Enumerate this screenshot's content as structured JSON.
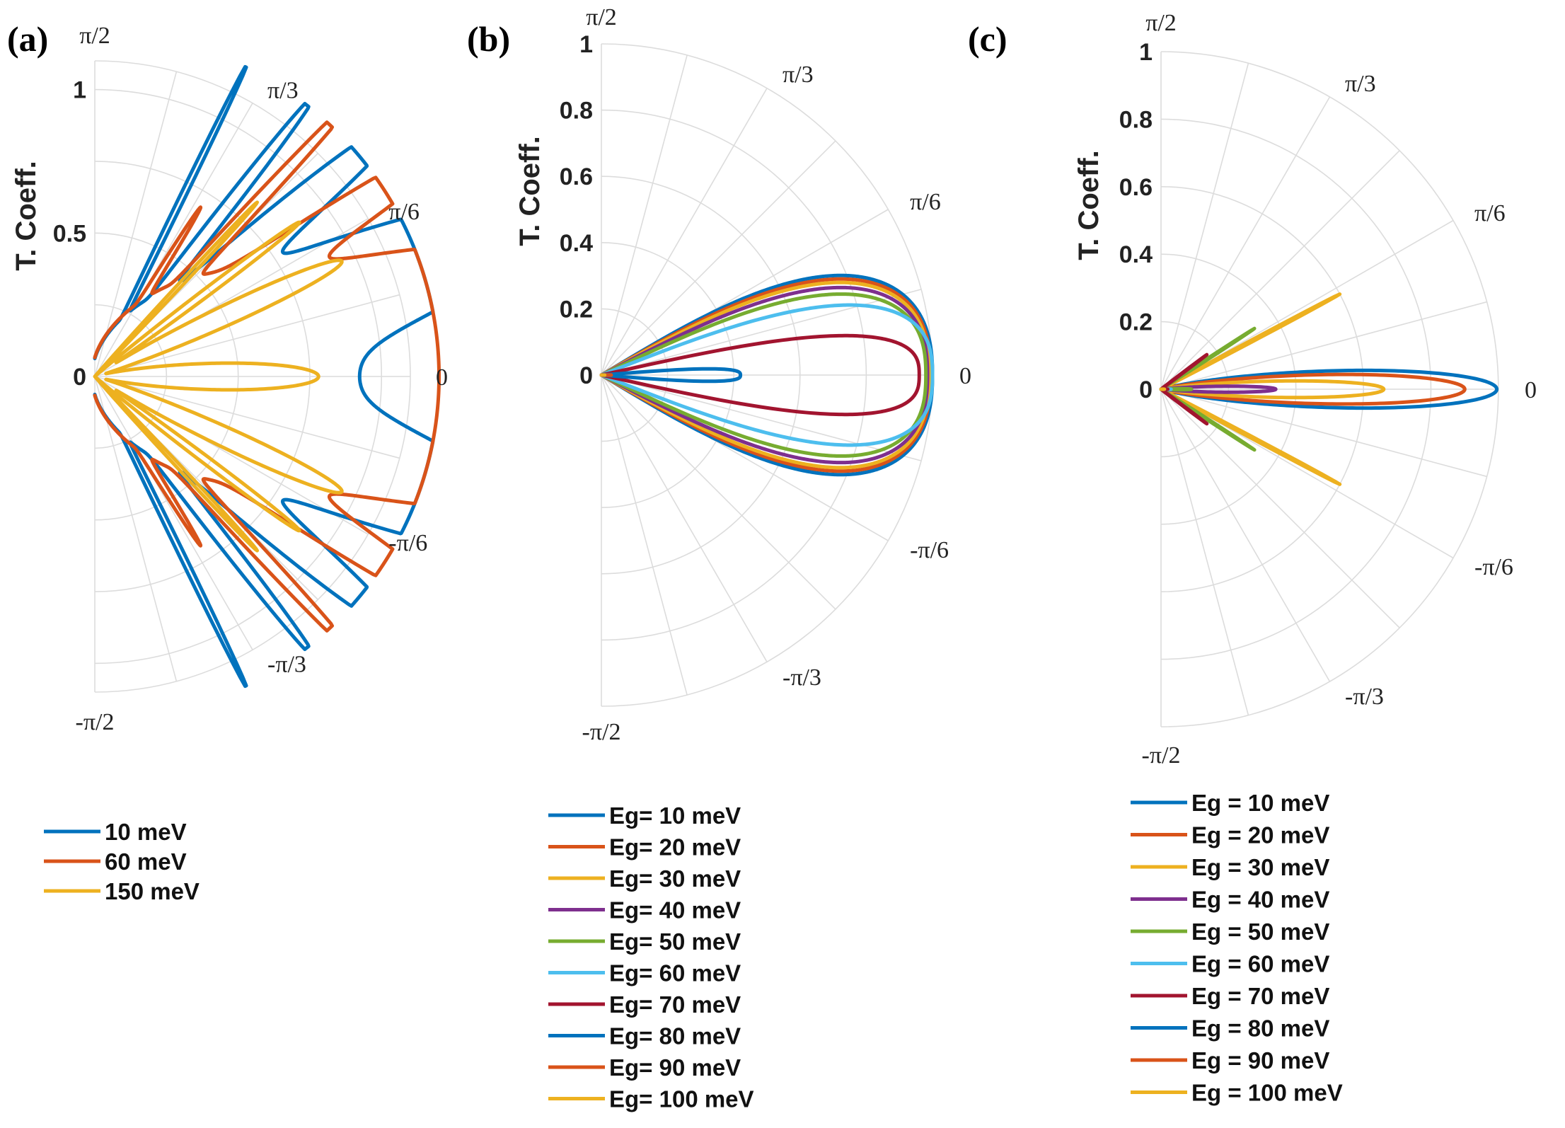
{
  "chart_data": [
    {
      "panel": "(a)",
      "type": "polar-line",
      "ylabel": "T. Coeff.",
      "rlim": [
        0,
        1.1
      ],
      "r_ticks": [
        0,
        0.5,
        1
      ],
      "r_tick_labels": [
        "0",
        "0.5",
        "1"
      ],
      "theta_range_deg": [
        -90,
        90
      ],
      "theta_ticks_deg": [
        90,
        60,
        30,
        0,
        -30,
        -60,
        -90
      ],
      "theta_tick_labels": [
        "π/2",
        "π/3",
        "π/6",
        "0",
        "-π/6",
        "-π/3",
        "-π/2"
      ],
      "grid": true,
      "legend_position": "below",
      "series": [
        {
          "name": "10 meV",
          "color": "#0072BD",
          "model": "lobes",
          "lobes": [
            {
              "theta": 0,
              "r": 0.91,
              "w": 55
            },
            {
              "theta": 20,
              "r": 0.92,
              "w": 9
            },
            {
              "theta": -20,
              "r": 0.92,
              "w": 9
            },
            {
              "theta": 40,
              "r": 0.85,
              "w": 4
            },
            {
              "theta": -40,
              "r": 0.85,
              "w": 4
            },
            {
              "theta": 52,
              "r": 0.88,
              "w": 1.8
            },
            {
              "theta": -52,
              "r": 0.88,
              "w": 1.8
            },
            {
              "theta": 64,
              "r": 0.98,
              "w": 0.9
            },
            {
              "theta": -64,
              "r": 0.98,
              "w": 0.9
            }
          ]
        },
        {
          "name": "60 meV",
          "color": "#D95319",
          "model": "lobes",
          "lobes": [
            {
              "theta": 0,
              "r": 0.96,
              "w": 55
            },
            {
              "theta": 11,
              "r": 0.97,
              "w": 11
            },
            {
              "theta": -11,
              "r": 0.97,
              "w": 11
            },
            {
              "theta": 33,
              "r": 0.88,
              "w": 3.5
            },
            {
              "theta": -33,
              "r": 0.88,
              "w": 3.5
            },
            {
              "theta": 47,
              "r": 0.87,
              "w": 1.6
            },
            {
              "theta": -47,
              "r": 0.87,
              "w": 1.6
            },
            {
              "theta": 58,
              "r": 0.38,
              "w": 1.2
            },
            {
              "theta": -58,
              "r": 0.38,
              "w": 1.2
            }
          ]
        },
        {
          "name": "150 meV",
          "color": "#EDB120",
          "model": "lobes",
          "lobes": [
            {
              "theta": 0,
              "r": 0.78,
              "w": 8
            },
            {
              "theta": 25,
              "r": 0.95,
              "w": 5
            },
            {
              "theta": -25,
              "r": 0.95,
              "w": 5
            },
            {
              "theta": 37,
              "r": 0.89,
              "w": 2
            },
            {
              "theta": -37,
              "r": 0.89,
              "w": 2
            },
            {
              "theta": 47,
              "r": 0.83,
              "w": 1.1
            },
            {
              "theta": -47,
              "r": 0.83,
              "w": 1.1
            }
          ]
        }
      ]
    },
    {
      "panel": "(b)",
      "type": "polar-line",
      "ylabel": "T. Coeff.",
      "rlim": [
        0,
        1
      ],
      "r_ticks": [
        0,
        0.2,
        0.4,
        0.6,
        0.8,
        1
      ],
      "r_tick_labels": [
        "0",
        "0.2",
        "0.4",
        "0.6",
        "0.8",
        "1"
      ],
      "theta_range_deg": [
        -90,
        90
      ],
      "theta_ticks_deg": [
        90,
        60,
        30,
        0,
        -30,
        -60,
        -90
      ],
      "theta_tick_labels": [
        "π/2",
        "π/3",
        "π/6",
        "0",
        "-π/6",
        "-π/3",
        "-π/2"
      ],
      "grid": true,
      "legend_position": "below",
      "series": [
        {
          "name": "Eg= 10 meV",
          "color": "#0072BD",
          "model": "flat",
          "peak": 1.0,
          "width_deg": 31
        },
        {
          "name": "Eg= 20 meV",
          "color": "#D95319",
          "model": "flat",
          "peak": 0.995,
          "width_deg": 30
        },
        {
          "name": "Eg= 30 meV",
          "color": "#EDB120",
          "model": "flat",
          "peak": 0.99,
          "width_deg": 29
        },
        {
          "name": "Eg= 40 meV",
          "color": "#7E2F8E",
          "model": "flat",
          "peak": 0.985,
          "width_deg": 27.5
        },
        {
          "name": "Eg= 50 meV",
          "color": "#77AC30",
          "model": "flat",
          "peak": 0.98,
          "width_deg": 25.5
        },
        {
          "name": "Eg= 60 meV",
          "color": "#4DBEEE",
          "model": "flat",
          "peak": 1.0,
          "width_deg": 21.5
        },
        {
          "name": "Eg= 70 meV",
          "color": "#A2142F",
          "model": "flat",
          "peak": 0.96,
          "width_deg": 12.5
        },
        {
          "name": "Eg= 80 meV",
          "color": "#0072BD",
          "model": "flat",
          "peak": 0.42,
          "width_deg": 4.5
        },
        {
          "name": "Eg= 90 meV",
          "color": "#D95319",
          "model": "flat",
          "peak": 0.03,
          "width_deg": 1
        },
        {
          "name": "Eg= 100 meV",
          "color": "#EDB120",
          "model": "flat",
          "peak": 0.01,
          "width_deg": 1
        }
      ]
    },
    {
      "panel": "(c)",
      "type": "polar-line",
      "ylabel": "T. Coeff.",
      "rlim": [
        0,
        1
      ],
      "r_ticks": [
        0,
        0.2,
        0.4,
        0.6,
        0.8,
        1
      ],
      "r_tick_labels": [
        "0",
        "0.2",
        "0.4",
        "0.6",
        "0.8",
        "1"
      ],
      "theta_range_deg": [
        -90,
        90
      ],
      "theta_ticks_deg": [
        90,
        60,
        30,
        0,
        -30,
        -60,
        -90
      ],
      "theta_tick_labels": [
        "π/2",
        "π/3",
        "π/6",
        "0",
        "-π/6",
        "-π/3",
        "-π/2"
      ],
      "grid": true,
      "legend_position": "below",
      "series": [
        {
          "name": "Eg = 10 meV",
          "color": "#0072BD",
          "model": "lobes",
          "lobes": [
            {
              "theta": 0,
              "r": 0.995,
              "w": 7.5
            }
          ]
        },
        {
          "name": "Eg = 20 meV",
          "color": "#D95319",
          "model": "lobes",
          "lobes": [
            {
              "theta": 0,
              "r": 0.9,
              "w": 6.5
            }
          ]
        },
        {
          "name": "Eg = 30 meV",
          "color": "#EDB120",
          "model": "lobes",
          "lobes": [
            {
              "theta": 0,
              "r": 0.66,
              "w": 5
            },
            {
              "theta": 28,
              "r": 0.6,
              "w": 0.6
            },
            {
              "theta": -28,
              "r": 0.6,
              "w": 0.6
            }
          ]
        },
        {
          "name": "Eg = 40 meV",
          "color": "#7E2F8E",
          "model": "lobes",
          "lobes": [
            {
              "theta": 0,
              "r": 0.34,
              "w": 3.5
            }
          ]
        },
        {
          "name": "Eg = 50 meV",
          "color": "#77AC30",
          "model": "lobes",
          "lobes": [
            {
              "theta": 0,
              "r": 0.09,
              "w": 2.5
            },
            {
              "theta": 33,
              "r": 0.33,
              "w": 0.6
            },
            {
              "theta": -33,
              "r": 0.33,
              "w": 0.6
            }
          ]
        },
        {
          "name": "Eg = 60 meV",
          "color": "#4DBEEE",
          "model": "lobes",
          "lobes": [
            {
              "theta": 0,
              "r": 0.03,
              "w": 2
            }
          ]
        },
        {
          "name": "Eg = 70 meV",
          "color": "#A2142F",
          "model": "lobes",
          "lobes": [
            {
              "theta": 0,
              "r": 0.02,
              "w": 2
            },
            {
              "theta": 37,
              "r": 0.17,
              "w": 0.6
            },
            {
              "theta": -37,
              "r": 0.17,
              "w": 0.6
            }
          ]
        },
        {
          "name": "Eg = 80 meV",
          "color": "#0072BD",
          "model": "lobes",
          "lobes": [
            {
              "theta": 0,
              "r": 0.01,
              "w": 2
            }
          ]
        },
        {
          "name": "Eg = 90 meV",
          "color": "#D95319",
          "model": "lobes",
          "lobes": [
            {
              "theta": 0,
              "r": 0.01,
              "w": 2
            }
          ]
        },
        {
          "name": "Eg = 100 meV",
          "color": "#EDB120",
          "model": "lobes",
          "lobes": [
            {
              "theta": 0,
              "r": 0.01,
              "w": 2
            }
          ]
        }
      ]
    }
  ]
}
